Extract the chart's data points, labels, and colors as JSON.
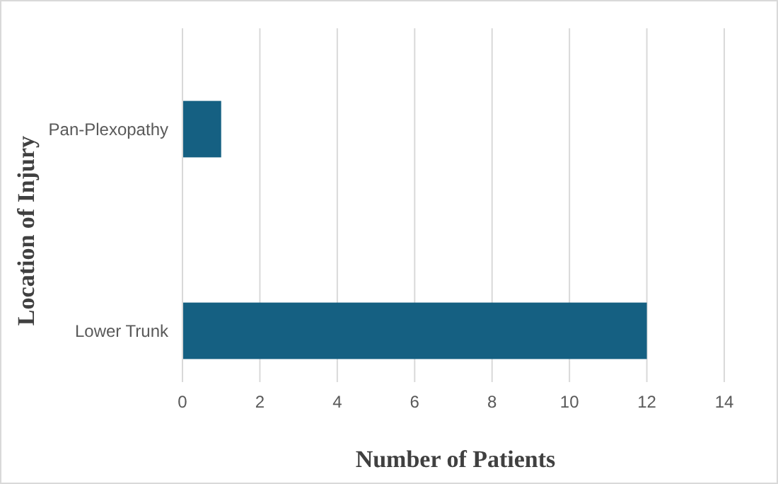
{
  "chart_data": {
    "type": "bar",
    "orientation": "horizontal",
    "categories": [
      "Pan-Plexopathy",
      "Lower Trunk"
    ],
    "values": [
      1,
      12
    ],
    "color": "#156082",
    "xlim": [
      0,
      14
    ],
    "xticks": [
      0,
      2,
      4,
      6,
      8,
      10,
      12,
      14
    ],
    "grid": "x",
    "xlabel": "Number of Patients",
    "ylabel": "Location of Injury"
  }
}
